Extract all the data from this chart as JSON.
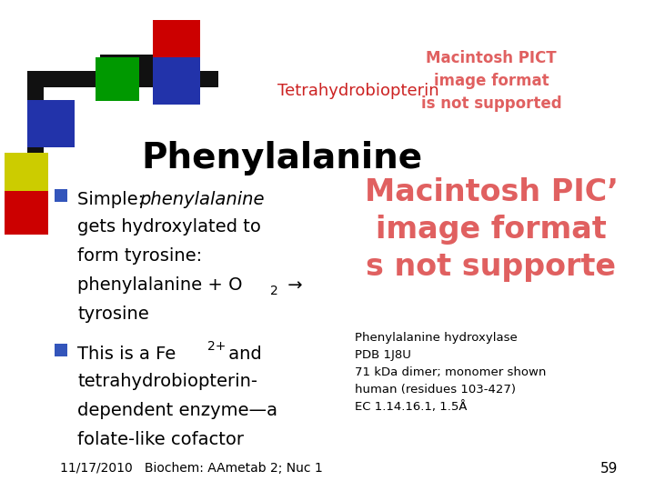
{
  "bg_color": "#ffffff",
  "title_tetra": "Tetrahydrobiopterin",
  "title_tetra_color": "#cc2222",
  "title_pheny": "Phenylalanine",
  "title_pheny_color": "#000000",
  "pict_msg1": "Macintosh PICT\nimage format\nis not supported",
  "pict_msg1_color": "#e06060",
  "pict_msg2": "Macintosh PICʼ\nimage format\ns not supporte",
  "pict_msg2_color": "#e06060",
  "bullet_color": "#3355bb",
  "caption": "Phenylalanine hydroxylase\nPDB 1J8U\n71 kDa dimer; monomer shown\nhuman (residues 103-427)\nEC 1.14.16.1, 1.5Å",
  "caption_color": "#000000",
  "footer": "11/17/2010   Biochem: AAmetab 2; Nuc 1",
  "footer_page": "59",
  "footer_color": "#000000"
}
